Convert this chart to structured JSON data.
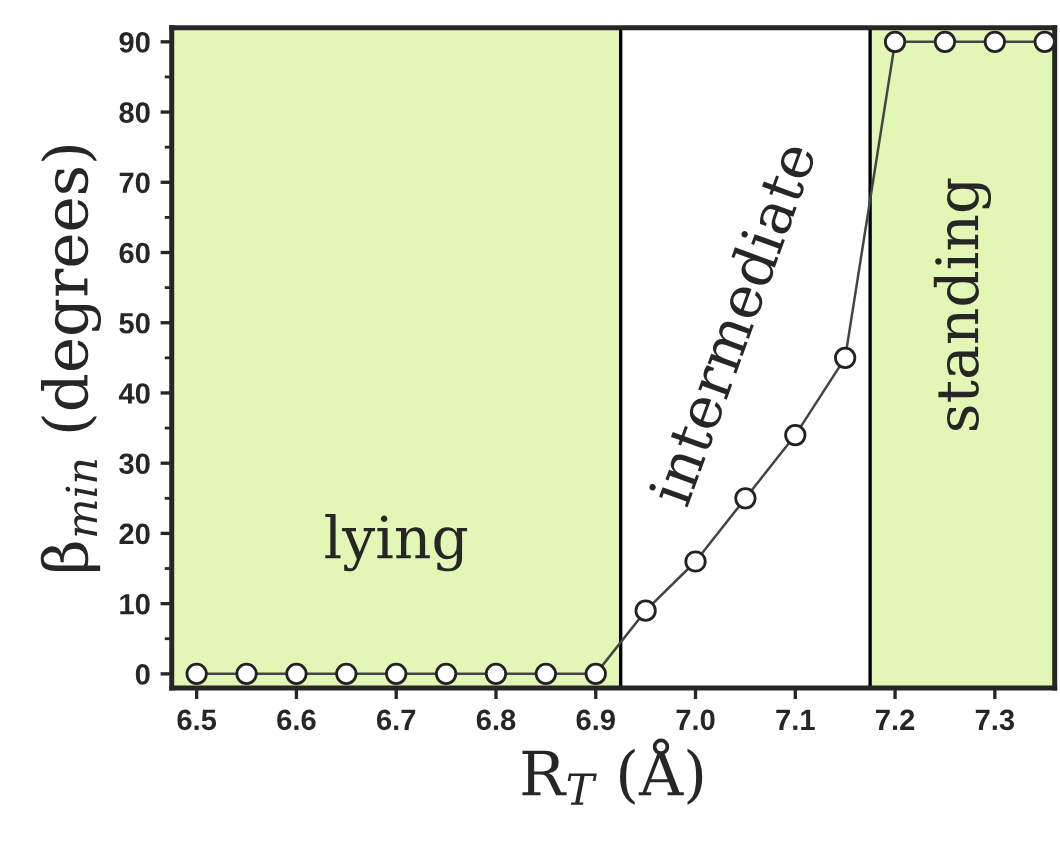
{
  "chart_data": {
    "type": "line",
    "xlabel": "R$_{T}$ (Å)",
    "ylabel": "β$_{min}$ (degrees)",
    "x": [
      6.5,
      6.55,
      6.6,
      6.65,
      6.7,
      6.75,
      6.8,
      6.85,
      6.9,
      6.95,
      7.0,
      7.05,
      7.1,
      7.15,
      7.2,
      7.25,
      7.3,
      7.35
    ],
    "series": [
      {
        "color": "#444444",
        "values": [
          0,
          0,
          0,
          0,
          0,
          0,
          0,
          0,
          0,
          9,
          16,
          25,
          34,
          45,
          90,
          90,
          90,
          90
        ]
      }
    ],
    "xlim": [
      6.475,
      7.36
    ],
    "ylim": [
      -2,
      92
    ],
    "xticks": [
      6.5,
      6.6,
      6.7,
      6.8,
      6.9,
      {
        "value": 7.0,
        "label": "7.0"
      },
      7.1,
      7.2,
      7.3
    ],
    "yticks": [
      0,
      10,
      20,
      30,
      40,
      50,
      60,
      70,
      80,
      90
    ],
    "bands": [
      {
        "axis": "x",
        "from": 6.475,
        "to": 6.925,
        "label": "lying",
        "color": "#e2f6b6"
      },
      {
        "axis": "x",
        "from": 7.175,
        "to": 7.36,
        "label": "standing",
        "color": "#e2f6b6"
      }
    ],
    "annotations": [
      "intermediate"
    ],
    "ref_lines": [
      {
        "axis": "x",
        "value": 6.925,
        "color": "#000000"
      },
      {
        "axis": "x",
        "value": 7.175,
        "color": "#000000"
      }
    ],
    "marker": "circle",
    "line_style": "solid",
    "grid": false,
    "legend": false
  }
}
